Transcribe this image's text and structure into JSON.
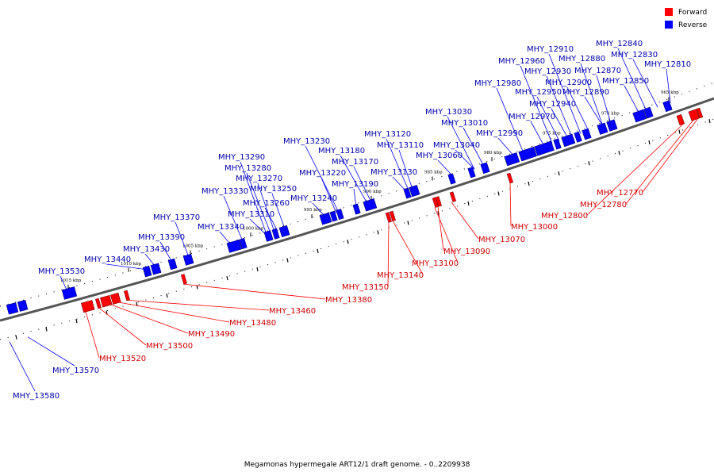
{
  "colors": {
    "forward": "#ff0000",
    "reverse": "#0000ff"
  },
  "legend": [
    {
      "name": "Forward",
      "color": "#ff0000"
    },
    {
      "name": "Reverse",
      "color": "#0000ff"
    }
  ],
  "caption": "Megamonas hypermegale ART12/1 draft genome. - 0..2209938",
  "ticks": [
    "965 kbp",
    "970 kbp",
    "975 kbp",
    "980 kbp",
    "985 kbp",
    "990 kbp",
    "995 kbp",
    "1000 kbp",
    "1005 kbp",
    "1010 kbp",
    "1015 kbp"
  ],
  "reverse_genes": [
    "MHY_12810",
    "MHY_12830",
    "MHY_12840",
    "MHY_12850",
    "MHY_12870",
    "MHY_12880",
    "MHY_12890",
    "MHY_12900",
    "MHY_12910",
    "MHY_12930",
    "MHY_12940",
    "MHY_12950",
    "MHY_12960",
    "MHY_12970",
    "MHY_12980",
    "MHY_12990",
    "MHY_13010",
    "MHY_13030",
    "MHY_13040",
    "MHY_13060",
    "MHY_13110",
    "MHY_13120",
    "MHY_13130",
    "MHY_13170",
    "MHY_13180",
    "MHY_13190",
    "MHY_13220",
    "MHY_13230",
    "MHY_13240",
    "MHY_13250",
    "MHY_13260",
    "MHY_13270",
    "MHY_13280",
    "MHY_13290",
    "MHY_13310",
    "MHY_13330",
    "MHY_13340",
    "MHY_13370",
    "MHY_13390",
    "MHY_13430",
    "MHY_13440",
    "MHY_13530",
    "MHY_13570",
    "MHY_13580"
  ],
  "forward_genes": [
    "MHY_12770",
    "MHY_12780",
    "MHY_12800",
    "MHY_13000",
    "MHY_13070",
    "MHY_13090",
    "MHY_13100",
    "MHY_13140",
    "MHY_13150",
    "MHY_13380",
    "MHY_13460",
    "MHY_13480",
    "MHY_13490",
    "MHY_13500",
    "MHY_13520"
  ]
}
